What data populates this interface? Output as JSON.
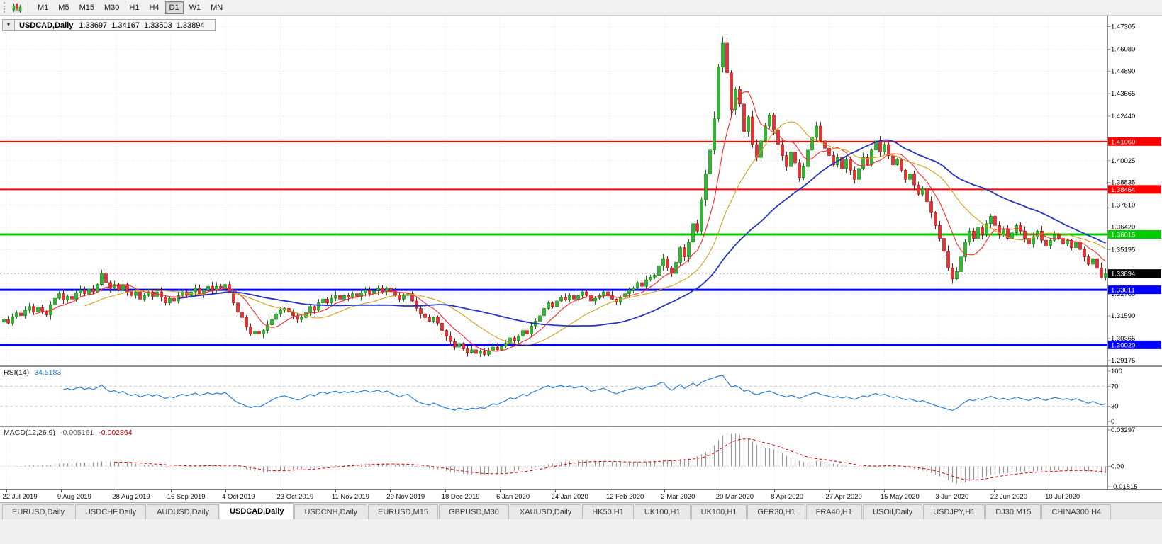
{
  "toolbar": {
    "timeframes": [
      "M1",
      "M5",
      "M15",
      "M30",
      "H1",
      "H4",
      "D1",
      "W1",
      "MN"
    ],
    "active_timeframe": "D1"
  },
  "chart": {
    "dropdown_glyph": "▼",
    "title": "USDCAD,Daily",
    "open": "1.33697",
    "high": "1.34167",
    "low": "1.33503",
    "close": "1.33894"
  },
  "chart_data": {
    "type": "candlestick",
    "symbol": "USDCAD",
    "timeframe": "Daily",
    "last_ohlc": {
      "open": 1.33697,
      "high": 1.34167,
      "low": 1.33503,
      "close": 1.33894
    },
    "price_axis": {
      "top": 1.479,
      "bottom": 1.289,
      "grid_prices": [
        1.47305,
        1.4608,
        1.4489,
        1.43665,
        1.4244,
        1.41215,
        1.40025,
        1.38835,
        1.3761,
        1.3642,
        1.35195,
        1.3397,
        1.3278,
        1.3159,
        1.30365,
        1.29175
      ],
      "labels": [
        "1.47305",
        "1.46080",
        "1.44890",
        "1.43665",
        "1.42440",
        "1.40025",
        "1.38835",
        "1.37610",
        "1.36420",
        "1.35195",
        "1.32780",
        "1.31590",
        "1.30365",
        "1.29175"
      ]
    },
    "x_labels": [
      "22 Jul 2019",
      "9 Aug 2019",
      "28 Aug 2019",
      "16 Sep 2019",
      "4 Oct 2019",
      "23 Oct 2019",
      "11 Nov 2019",
      "29 Nov 2019",
      "18 Dec 2019",
      "6 Jan 2020",
      "24 Jan 2020",
      "12 Feb 2020",
      "2 Mar 2020",
      "20 Mar 2020",
      "8 Apr 2020",
      "27 Apr 2020",
      "15 May 2020",
      "3 Jun 2020",
      "22 Jun 2020",
      "10 Jul 2020"
    ],
    "horizontal_levels": [
      {
        "price": 1.4106,
        "label": "1.41060",
        "color": "#ff0000",
        "width": 2
      },
      {
        "price": 1.38464,
        "label": "1.38464",
        "color": "#ff0000",
        "width": 2
      },
      {
        "price": 1.36015,
        "label": "1.36015",
        "color": "#00cc00",
        "width": 3
      },
      {
        "price": 1.33011,
        "label": "1.33011",
        "color": "#0000ff",
        "width": 3
      },
      {
        "price": 1.3002,
        "label": "1.30020",
        "color": "#0000ff",
        "width": 3
      }
    ],
    "current_price_label": {
      "price": 1.33894,
      "label": "1.33894",
      "bg": "#000000"
    },
    "candle_colors": {
      "bull_fill": "#2eb82e",
      "bull_stroke": "#157a15",
      "bear_fill": "#e63232",
      "bear_stroke": "#991414"
    },
    "moving_averages": [
      {
        "period": 8,
        "color": "#ff2a2a",
        "width": 1.1
      },
      {
        "period": 20,
        "color": "#d4a017",
        "width": 1.1
      },
      {
        "period": 42,
        "color": "#2535c0",
        "width": 1.8
      }
    ],
    "closes": [
      1.314,
      1.312,
      1.3155,
      1.3175,
      1.316,
      1.319,
      1.321,
      1.318,
      1.3205,
      1.3185,
      1.3165,
      1.322,
      1.3255,
      1.328,
      1.3245,
      1.3265,
      1.325,
      1.3285,
      1.33,
      1.328,
      1.3305,
      1.329,
      1.333,
      1.339,
      1.334,
      1.331,
      1.333,
      1.33,
      1.333,
      1.329,
      1.327,
      1.329,
      1.325,
      1.327,
      1.329,
      1.3265,
      1.329,
      1.326,
      1.323,
      1.3255,
      1.324,
      1.327,
      1.329,
      1.327,
      1.329,
      1.331,
      1.328,
      1.33,
      1.332,
      1.33,
      1.332,
      1.331,
      1.333,
      1.329,
      1.323,
      1.318,
      1.315,
      1.31,
      1.306,
      1.3075,
      1.306,
      1.308,
      1.311,
      1.314,
      1.317,
      1.319,
      1.32,
      1.318,
      1.316,
      1.314,
      1.315,
      1.318,
      1.321,
      1.319,
      1.323,
      1.325,
      1.323,
      1.3255,
      1.327,
      1.325,
      1.327,
      1.326,
      1.328,
      1.3265,
      1.3285,
      1.33,
      1.328,
      1.3295,
      1.331,
      1.329,
      1.331,
      1.329,
      1.327,
      1.325,
      1.327,
      1.328,
      1.324,
      1.32,
      1.317,
      1.315,
      1.313,
      1.315,
      1.312,
      1.308,
      1.305,
      1.302,
      1.299,
      1.301,
      1.298,
      1.296,
      1.2975,
      1.2955,
      1.2965,
      1.295,
      1.297,
      1.299,
      1.2975,
      1.2995,
      1.301,
      1.304,
      1.3025,
      1.305,
      1.308,
      1.306,
      1.3105,
      1.313,
      1.316,
      1.32,
      1.323,
      1.321,
      1.324,
      1.326,
      1.3245,
      1.327,
      1.325,
      1.327,
      1.329,
      1.327,
      1.324,
      1.3255,
      1.327,
      1.329,
      1.327,
      1.325,
      1.3235,
      1.326,
      1.328,
      1.33,
      1.331,
      1.334,
      1.332,
      1.3355,
      1.337,
      1.338,
      1.343,
      1.347,
      1.342,
      1.339,
      1.345,
      1.353,
      1.348,
      1.356,
      1.366,
      1.362,
      1.379,
      1.393,
      1.406,
      1.423,
      1.451,
      1.464,
      1.448,
      1.428,
      1.439,
      1.431,
      1.416,
      1.424,
      1.409,
      1.402,
      1.411,
      1.419,
      1.425,
      1.417,
      1.409,
      1.403,
      1.397,
      1.405,
      1.399,
      1.391,
      1.397,
      1.406,
      1.413,
      1.419,
      1.411,
      1.407,
      1.403,
      1.398,
      1.402,
      1.396,
      1.401,
      1.395,
      1.39,
      1.396,
      1.402,
      1.398,
      1.406,
      1.411,
      1.405,
      1.409,
      1.403,
      1.398,
      1.401,
      1.395,
      1.39,
      1.393,
      1.387,
      1.382,
      1.385,
      1.378,
      1.372,
      1.365,
      1.358,
      1.351,
      1.342,
      1.336,
      1.34,
      1.348,
      1.356,
      1.362,
      1.358,
      1.364,
      1.36,
      1.366,
      1.37,
      1.365,
      1.36,
      1.363,
      1.358,
      1.361,
      1.365,
      1.362,
      1.358,
      1.355,
      1.359,
      1.362,
      1.357,
      1.354,
      1.357,
      1.36,
      1.358,
      1.355,
      1.357,
      1.353,
      1.356,
      1.352,
      1.348,
      1.344,
      1.347,
      1.342,
      1.33697,
      1.33894
    ],
    "indicators": {
      "rsi": {
        "name": "RSI(14)",
        "value": "34.5183",
        "period": 14,
        "color": "#2b7fd4",
        "axis_labels": [
          "100",
          "70",
          "30",
          "0"
        ],
        "axis_values": [
          100,
          70,
          30,
          0
        ],
        "guide_levels": [
          70,
          30
        ]
      },
      "macd": {
        "name": "MACD(12,26,9)",
        "main_value": "-0.005161",
        "signal_value": "-0.002864",
        "fast": 12,
        "slow": 26,
        "signal": 9,
        "axis_labels": [
          "0.03297",
          "0.00",
          "-0.01815"
        ],
        "axis_max": 0.03297,
        "axis_min": -0.01815,
        "hist_color": "#9a9a9a",
        "signal_color": "#d40000"
      }
    }
  },
  "tabs": {
    "items": [
      "EURUSD,Daily",
      "USDCHF,Daily",
      "AUDUSD,Daily",
      "USDCAD,Daily",
      "USDCNH,Daily",
      "EURUSD,M15",
      "GBPUSD,M30",
      "XAUUSD,Daily",
      "HK50,H1",
      "UK100,H1",
      "UK100,H1",
      "GER30,H1",
      "FRA40,H1",
      "USOil,Daily",
      "USDJPY,H1",
      "DJ30,M15",
      "CHINA300,H4"
    ],
    "active_index": 3
  }
}
